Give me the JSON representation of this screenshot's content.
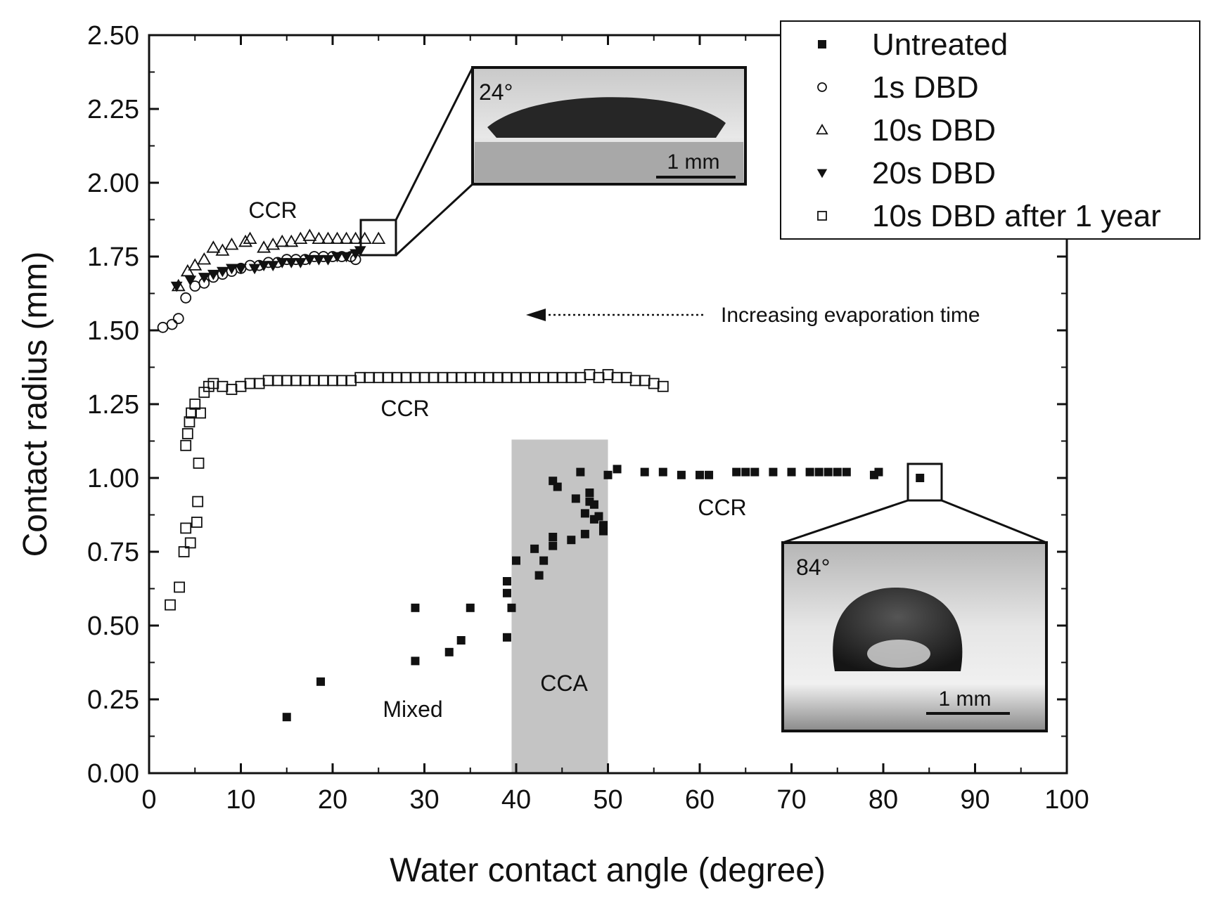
{
  "chart_data": {
    "type": "scatter",
    "title": "",
    "xlabel": "Water contact angle (degree)",
    "ylabel": "Contact radius (mm)",
    "xlim": [
      0,
      100
    ],
    "ylim": [
      0,
      2.5
    ],
    "x_ticks": [
      "0",
      "10",
      "20",
      "30",
      "40",
      "50",
      "60",
      "70",
      "80",
      "90",
      "100"
    ],
    "y_ticks": [
      "0.00",
      "0.25",
      "0.50",
      "0.75",
      "1.00",
      "1.25",
      "1.50",
      "1.75",
      "2.00",
      "2.25",
      "2.50"
    ],
    "legend_position": "top-right",
    "series": [
      {
        "name": "Untreated",
        "marker": "filled-square",
        "points": [
          [
            15,
            0.19
          ],
          [
            18.7,
            0.31
          ],
          [
            29,
            0.38
          ],
          [
            29,
            0.56
          ],
          [
            32.7,
            0.41
          ],
          [
            34,
            0.45
          ],
          [
            35,
            0.56
          ],
          [
            39,
            0.46
          ],
          [
            39,
            0.61
          ],
          [
            39,
            0.65
          ],
          [
            39.5,
            0.56
          ],
          [
            40,
            0.72
          ],
          [
            42,
            0.76
          ],
          [
            42.5,
            0.67
          ],
          [
            43,
            0.72
          ],
          [
            44,
            0.99
          ],
          [
            44.5,
            0.97
          ],
          [
            44,
            0.77
          ],
          [
            44,
            0.8
          ],
          [
            46,
            0.79
          ],
          [
            46.5,
            0.93
          ],
          [
            47,
            1.02
          ],
          [
            47.5,
            0.81
          ],
          [
            47.5,
            0.88
          ],
          [
            48,
            0.92
          ],
          [
            48,
            0.95
          ],
          [
            48.5,
            0.91
          ],
          [
            48.5,
            0.86
          ],
          [
            49,
            0.87
          ],
          [
            49.5,
            0.82
          ],
          [
            49.5,
            0.84
          ],
          [
            50,
            1.01
          ],
          [
            51,
            1.03
          ],
          [
            54,
            1.02
          ],
          [
            56,
            1.02
          ],
          [
            58,
            1.01
          ],
          [
            60,
            1.01
          ],
          [
            61,
            1.01
          ],
          [
            64,
            1.02
          ],
          [
            65,
            1.02
          ],
          [
            66,
            1.02
          ],
          [
            68,
            1.02
          ],
          [
            70,
            1.02
          ],
          [
            72,
            1.02
          ],
          [
            73,
            1.02
          ],
          [
            74,
            1.02
          ],
          [
            75,
            1.02
          ],
          [
            76,
            1.02
          ],
          [
            79,
            1.01
          ],
          [
            79.5,
            1.02
          ],
          [
            84,
            1.0
          ]
        ]
      },
      {
        "name": "1s DBD",
        "marker": "open-circle",
        "points": [
          [
            1.5,
            1.51
          ],
          [
            2.5,
            1.52
          ],
          [
            3.2,
            1.54
          ],
          [
            4,
            1.61
          ],
          [
            5,
            1.65
          ],
          [
            6,
            1.66
          ],
          [
            7,
            1.68
          ],
          [
            8,
            1.69
          ],
          [
            9,
            1.7
          ],
          [
            10,
            1.71
          ],
          [
            11,
            1.72
          ],
          [
            12,
            1.72
          ],
          [
            13,
            1.73
          ],
          [
            14,
            1.73
          ],
          [
            15,
            1.74
          ],
          [
            16,
            1.74
          ],
          [
            17,
            1.74
          ],
          [
            18,
            1.75
          ],
          [
            19,
            1.75
          ],
          [
            20,
            1.75
          ],
          [
            21,
            1.75
          ],
          [
            22,
            1.75
          ],
          [
            22.5,
            1.74
          ]
        ]
      },
      {
        "name": "10s DBD",
        "marker": "open-triangle",
        "points": [
          [
            3.2,
            1.65
          ],
          [
            4.2,
            1.7
          ],
          [
            5,
            1.72
          ],
          [
            6,
            1.74
          ],
          [
            7,
            1.78
          ],
          [
            8,
            1.77
          ],
          [
            9,
            1.79
          ],
          [
            10.5,
            1.8
          ],
          [
            11,
            1.81
          ],
          [
            12.5,
            1.78
          ],
          [
            13.5,
            1.79
          ],
          [
            14.5,
            1.8
          ],
          [
            15.5,
            1.8
          ],
          [
            16.5,
            1.81
          ],
          [
            17.5,
            1.82
          ],
          [
            18.5,
            1.81
          ],
          [
            19.5,
            1.81
          ],
          [
            20.5,
            1.81
          ],
          [
            21.5,
            1.81
          ],
          [
            22.5,
            1.81
          ],
          [
            23.5,
            1.81
          ],
          [
            25,
            1.81
          ]
        ]
      },
      {
        "name": "20s DBD",
        "marker": "filled-triangle-down",
        "points": [
          [
            3,
            1.65
          ],
          [
            4.5,
            1.67
          ],
          [
            6,
            1.68
          ],
          [
            7,
            1.69
          ],
          [
            8,
            1.7
          ],
          [
            9,
            1.71
          ],
          [
            10,
            1.71
          ],
          [
            11.5,
            1.71
          ],
          [
            12.5,
            1.72
          ],
          [
            13.5,
            1.72
          ],
          [
            14.5,
            1.73
          ],
          [
            15.5,
            1.73
          ],
          [
            16.5,
            1.73
          ],
          [
            17.5,
            1.74
          ],
          [
            18.5,
            1.74
          ],
          [
            19.5,
            1.74
          ],
          [
            20.5,
            1.75
          ],
          [
            21.5,
            1.75
          ],
          [
            22.5,
            1.76
          ],
          [
            23,
            1.77
          ]
        ]
      },
      {
        "name": "10s DBD after 1 year",
        "marker": "open-square",
        "points": [
          [
            2.3,
            0.57
          ],
          [
            3.3,
            0.63
          ],
          [
            3.8,
            0.75
          ],
          [
            4,
            0.83
          ],
          [
            4.5,
            0.78
          ],
          [
            5.2,
            0.85
          ],
          [
            5.3,
            0.92
          ],
          [
            5.4,
            1.05
          ],
          [
            4,
            1.11
          ],
          [
            4.2,
            1.15
          ],
          [
            4.4,
            1.19
          ],
          [
            4.6,
            1.22
          ],
          [
            5,
            1.25
          ],
          [
            5.6,
            1.22
          ],
          [
            6,
            1.29
          ],
          [
            6.5,
            1.31
          ],
          [
            7,
            1.32
          ],
          [
            8,
            1.31
          ],
          [
            9,
            1.3
          ],
          [
            10,
            1.31
          ],
          [
            11,
            1.32
          ],
          [
            12,
            1.32
          ],
          [
            13,
            1.33
          ],
          [
            14,
            1.33
          ],
          [
            15,
            1.33
          ],
          [
            16,
            1.33
          ],
          [
            17,
            1.33
          ],
          [
            18,
            1.33
          ],
          [
            19,
            1.33
          ],
          [
            20,
            1.33
          ],
          [
            21,
            1.33
          ],
          [
            22,
            1.33
          ],
          [
            23,
            1.34
          ],
          [
            24,
            1.34
          ],
          [
            25,
            1.34
          ],
          [
            26,
            1.34
          ],
          [
            27,
            1.34
          ],
          [
            28,
            1.34
          ],
          [
            29,
            1.34
          ],
          [
            30,
            1.34
          ],
          [
            31,
            1.34
          ],
          [
            32,
            1.34
          ],
          [
            33,
            1.34
          ],
          [
            34,
            1.34
          ],
          [
            35,
            1.34
          ],
          [
            36,
            1.34
          ],
          [
            37,
            1.34
          ],
          [
            38,
            1.34
          ],
          [
            39,
            1.34
          ],
          [
            40,
            1.34
          ],
          [
            41,
            1.34
          ],
          [
            42,
            1.34
          ],
          [
            43,
            1.34
          ],
          [
            44,
            1.34
          ],
          [
            45,
            1.34
          ],
          [
            46,
            1.34
          ],
          [
            47,
            1.34
          ],
          [
            48,
            1.35
          ],
          [
            49,
            1.34
          ],
          [
            50,
            1.35
          ],
          [
            51,
            1.34
          ],
          [
            52,
            1.34
          ],
          [
            53,
            1.33
          ],
          [
            54,
            1.33
          ],
          [
            55,
            1.32
          ],
          [
            56,
            1.31
          ]
        ]
      }
    ],
    "annotations": {
      "ccr_top": "CCR",
      "ccr_middle": "CCR",
      "ccr_right": "CCR",
      "cca": "CCA",
      "mixed": "Mixed",
      "arrow_text": "Increasing evaporation time"
    },
    "cca_region": [
      39.5,
      50
    ],
    "insets": [
      {
        "angle_label": "24°",
        "scale_label": "1 mm",
        "zoom_point": [
          25,
          1.81
        ]
      },
      {
        "angle_label": "84°",
        "scale_label": "1 mm",
        "zoom_point": [
          84,
          1.0
        ]
      }
    ]
  }
}
